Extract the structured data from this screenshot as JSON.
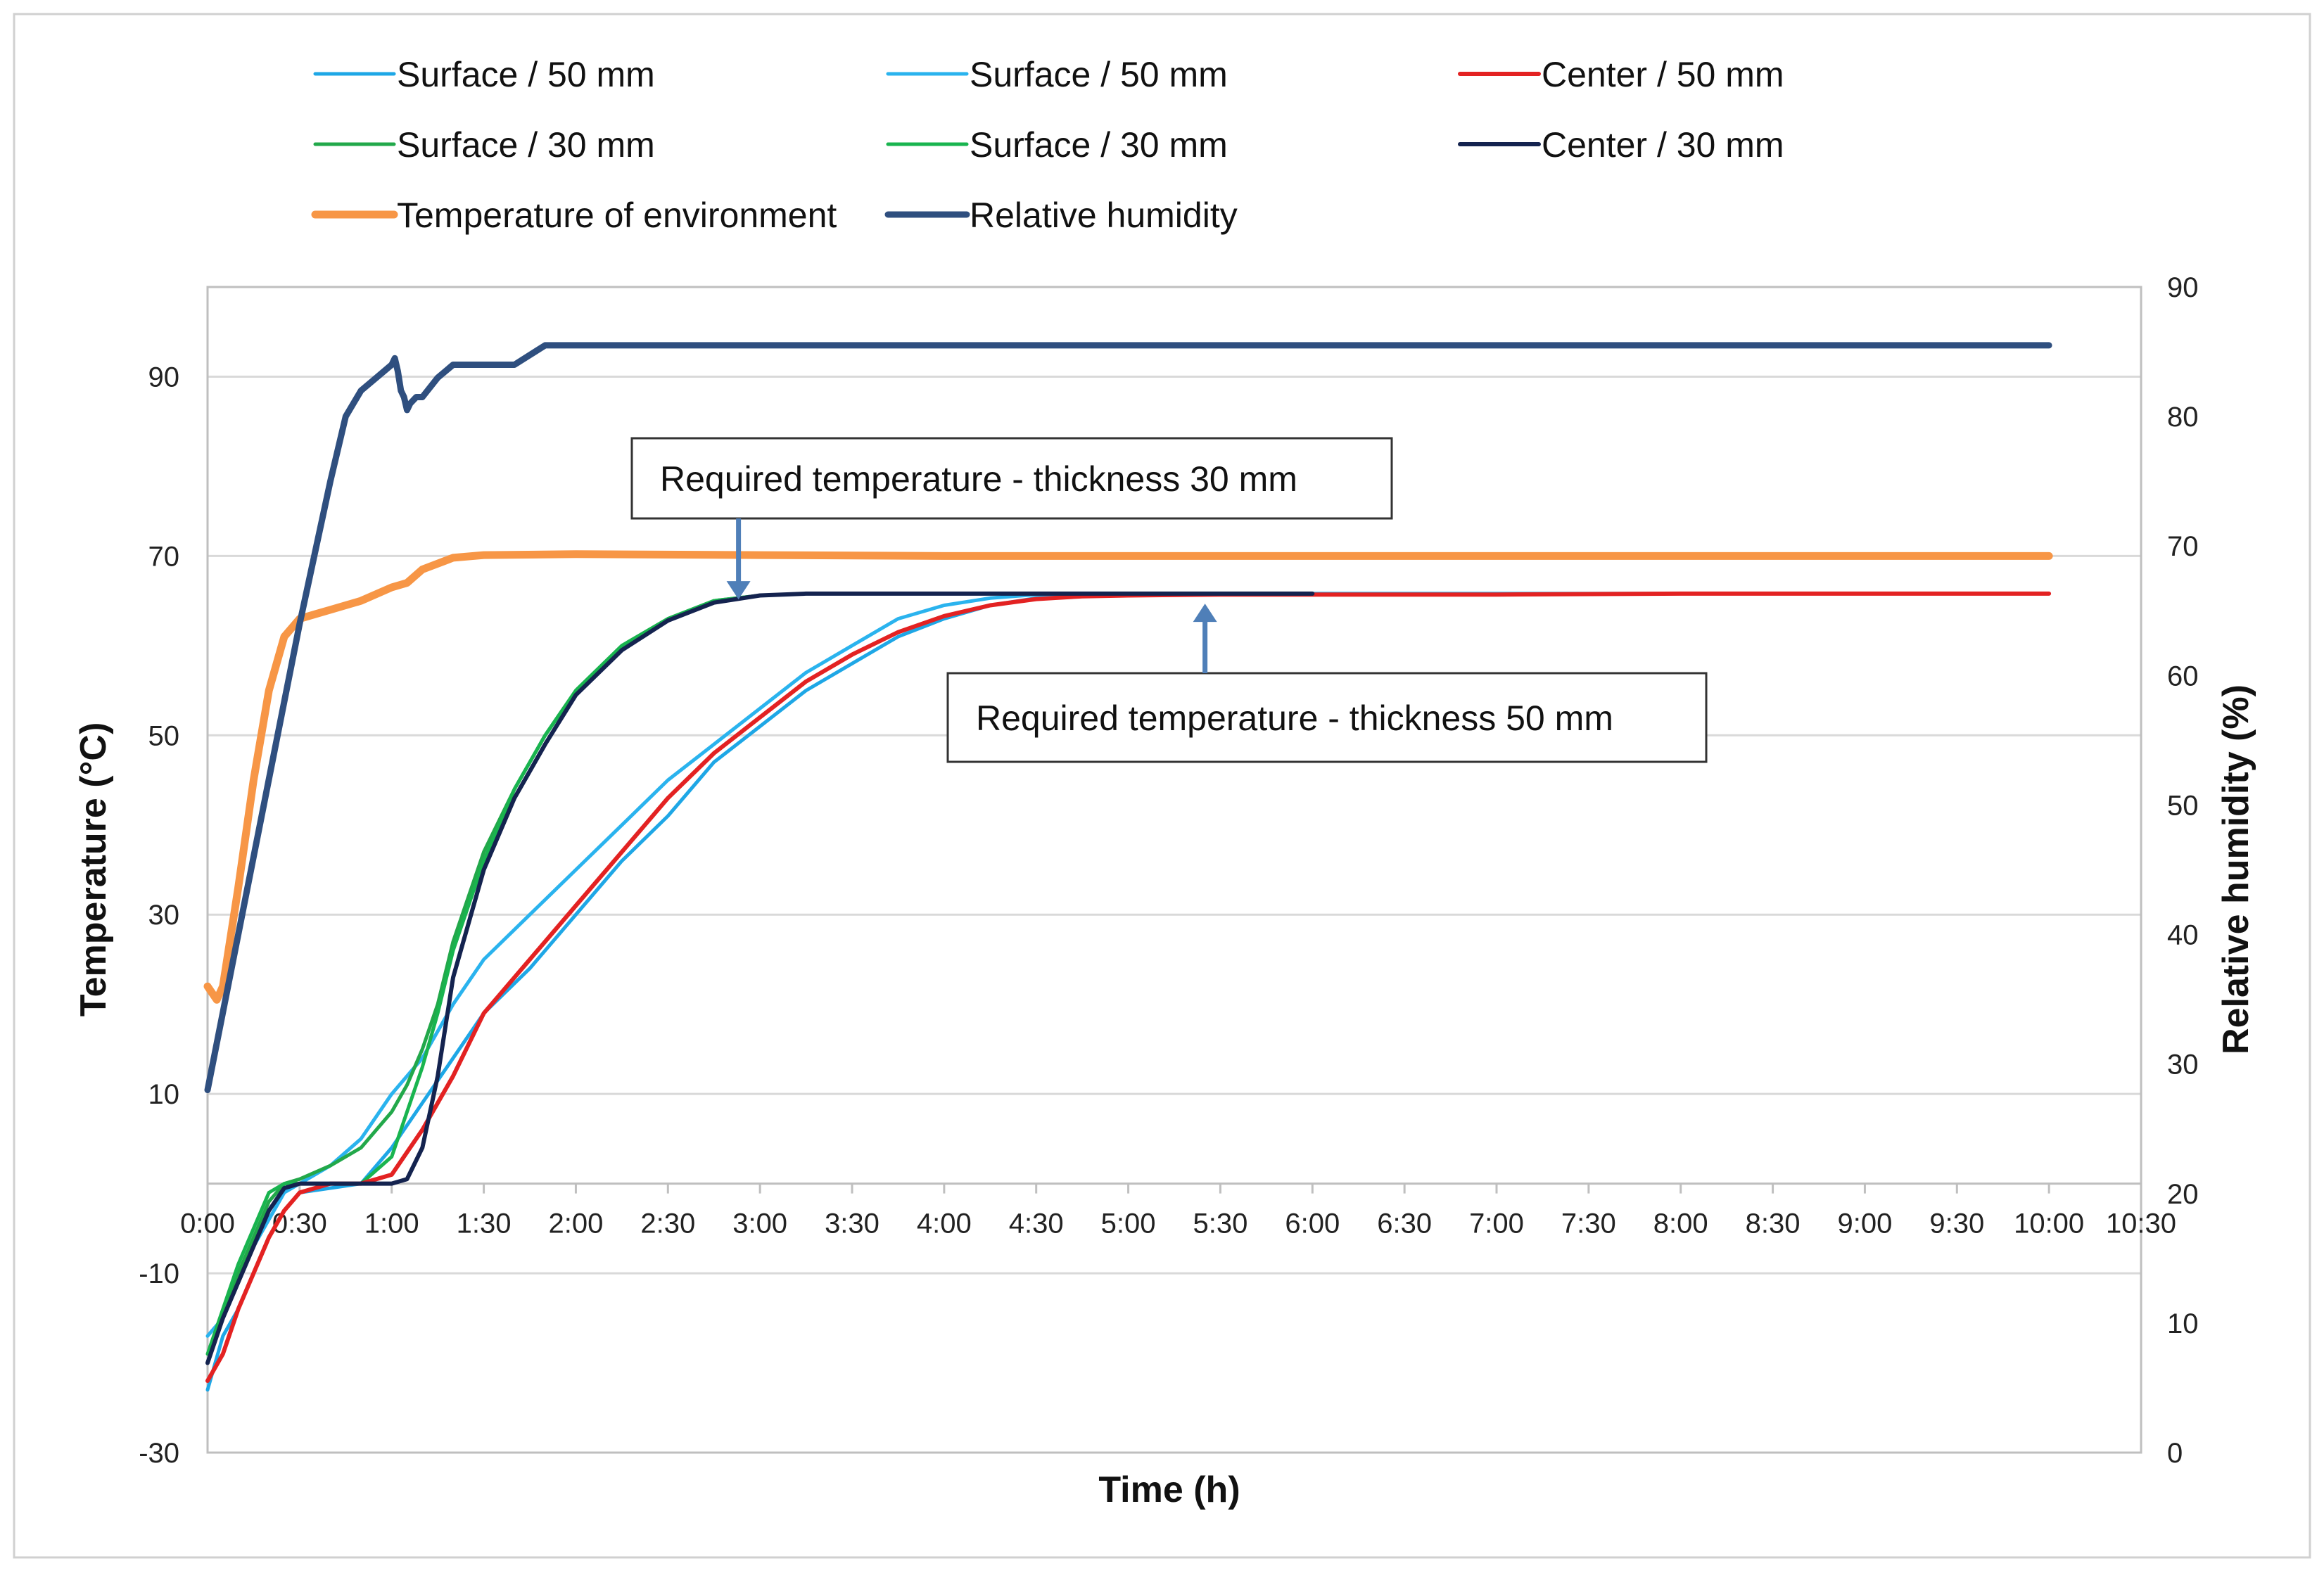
{
  "chart_data": {
    "type": "line",
    "xlabel": "Time (h)",
    "ylabel": "Temperature (°C)",
    "y2label": "Relative humidity (%)",
    "xlim": [
      0,
      630
    ],
    "ylim": [
      -30,
      100
    ],
    "y2lim": [
      0,
      90
    ],
    "x_ticks": [
      0,
      30,
      60,
      90,
      120,
      150,
      180,
      210,
      240,
      270,
      300,
      330,
      360,
      390,
      420,
      450,
      480,
      510,
      540,
      570,
      600,
      630
    ],
    "x_tick_labels": [
      "0:00",
      "0:30",
      "1:00",
      "1:30",
      "2:00",
      "2:30",
      "3:00",
      "3:30",
      "4:00",
      "4:30",
      "5:00",
      "5:30",
      "6:00",
      "6:30",
      "7:00",
      "7:30",
      "8:00",
      "8:30",
      "9:00",
      "9:30",
      "10:00",
      "10:30"
    ],
    "y_ticks": [
      -30,
      -10,
      10,
      30,
      50,
      70,
      90
    ],
    "y_tick_labels": [
      "-30",
      "-10",
      "10",
      "30",
      "50",
      "70",
      "90"
    ],
    "y2_ticks": [
      0,
      10,
      20,
      30,
      40,
      50,
      60,
      70,
      80,
      90
    ],
    "y2_tick_labels": [
      "0",
      "10",
      "20",
      "30",
      "40",
      "50",
      "60",
      "70",
      "80",
      "90"
    ],
    "gridlines": "horizontal",
    "legend_position": "top",
    "series": [
      {
        "name": "Surface / 50 mm",
        "color": "#1ea7e6",
        "axis": "left",
        "x": [
          0,
          5,
          10,
          15,
          20,
          25,
          30,
          40,
          50,
          60,
          70,
          80,
          90,
          105,
          120,
          135,
          150,
          165,
          180,
          195,
          210,
          225,
          240,
          255,
          270,
          285,
          300,
          330,
          360,
          420,
          480,
          540,
          600
        ],
        "y": [
          -23,
          -17,
          -14,
          -10,
          -6,
          -3,
          -1,
          -0.5,
          0,
          4,
          9,
          14,
          19,
          24,
          30,
          36,
          41,
          47,
          51,
          55,
          58,
          61,
          63,
          64.5,
          65.3,
          65.6,
          65.7,
          65.8,
          65.8,
          65.8,
          65.8,
          65.8,
          65.8
        ]
      },
      {
        "name": "Surface / 50 mm",
        "color": "#2ab3ee",
        "axis": "left",
        "x": [
          0,
          5,
          10,
          15,
          20,
          25,
          30,
          40,
          50,
          60,
          70,
          80,
          90,
          105,
          120,
          135,
          150,
          165,
          180,
          195,
          210,
          225,
          240,
          255,
          270,
          285,
          300,
          330,
          360,
          420,
          480,
          540,
          600
        ],
        "y": [
          -17,
          -15,
          -11,
          -7,
          -4,
          -1,
          0,
          2,
          5,
          10,
          14,
          20,
          25,
          30,
          35,
          40,
          45,
          49,
          53,
          57,
          60,
          63,
          64.5,
          65.3,
          65.7,
          65.8,
          65.8,
          65.8,
          65.8,
          65.8,
          65.8,
          65.8,
          65.8
        ]
      },
      {
        "name": "Center / 50 mm",
        "color": "#e32222",
        "axis": "left",
        "x": [
          0,
          5,
          10,
          15,
          20,
          25,
          30,
          40,
          50,
          60,
          70,
          80,
          90,
          105,
          120,
          135,
          150,
          165,
          180,
          195,
          210,
          225,
          240,
          255,
          270,
          285,
          300,
          330,
          360,
          420,
          480,
          540,
          600
        ],
        "y": [
          -22,
          -19,
          -14,
          -10,
          -6,
          -3,
          -1,
          0,
          0,
          1,
          6,
          12,
          19,
          25,
          31,
          37,
          43,
          48,
          52,
          56,
          59,
          61.5,
          63.3,
          64.5,
          65.2,
          65.5,
          65.6,
          65.7,
          65.7,
          65.7,
          65.8,
          65.8,
          65.8
        ]
      },
      {
        "name": "Surface / 30 mm",
        "color": "#22a84a",
        "axis": "left",
        "x": [
          0,
          5,
          10,
          15,
          20,
          25,
          30,
          40,
          50,
          60,
          65,
          70,
          75,
          80,
          90,
          100,
          110,
          120,
          135,
          150,
          165,
          180,
          195,
          210,
          240,
          270,
          300,
          360
        ],
        "y": [
          -20,
          -15,
          -10,
          -6,
          -2,
          0,
          0.5,
          2,
          4,
          8,
          11,
          15,
          20,
          27,
          37,
          44,
          50,
          55,
          60,
          63,
          65,
          65.6,
          65.8,
          65.8,
          65.8,
          65.8,
          65.8,
          65.8
        ]
      },
      {
        "name": "Surface / 30 mm",
        "color": "#19b44f",
        "axis": "left",
        "x": [
          0,
          5,
          10,
          15,
          20,
          25,
          30,
          40,
          50,
          60,
          65,
          70,
          75,
          80,
          90,
          100,
          110,
          120,
          135,
          150,
          165,
          180,
          195,
          210,
          240,
          270,
          300,
          360
        ],
        "y": [
          -19,
          -14,
          -9,
          -5,
          -1,
          0,
          0,
          0,
          0,
          3,
          8,
          13,
          19,
          26,
          36,
          44,
          50,
          55,
          60,
          63,
          65,
          65.6,
          65.8,
          65.8,
          65.8,
          65.8,
          65.8,
          65.8
        ]
      },
      {
        "name": "Center / 30 mm",
        "color": "#14234f",
        "axis": "left",
        "x": [
          0,
          5,
          10,
          15,
          20,
          25,
          30,
          40,
          50,
          60,
          65,
          70,
          75,
          80,
          90,
          100,
          110,
          120,
          135,
          150,
          165,
          180,
          195,
          210,
          240,
          270,
          300,
          360
        ],
        "y": [
          -20,
          -15,
          -11,
          -7,
          -3,
          -0.5,
          0,
          0,
          0,
          0,
          0.5,
          4,
          12,
          23,
          35,
          43,
          49,
          54.5,
          59.5,
          62.8,
          64.8,
          65.6,
          65.8,
          65.8,
          65.8,
          65.8,
          65.8,
          65.8
        ]
      },
      {
        "name": "Temperature of environment",
        "color": "#f79646",
        "axis": "left",
        "x": [
          0,
          3,
          5,
          10,
          15,
          20,
          25,
          30,
          35,
          40,
          50,
          60,
          65,
          70,
          80,
          90,
          120,
          180,
          240,
          300,
          360,
          420,
          480,
          540,
          600
        ],
        "y": [
          22,
          20.5,
          22,
          33,
          45,
          55,
          61,
          63,
          63.5,
          64,
          65,
          66.5,
          67,
          68.5,
          69.8,
          70.1,
          70.2,
          70.1,
          70.0,
          70.0,
          70.0,
          70.0,
          70.0,
          70.0,
          70.0
        ]
      },
      {
        "name": "Relative humidity",
        "color": "#2f4f7f",
        "axis": "right",
        "x": [
          0,
          10,
          20,
          30,
          40,
          45,
          50,
          55,
          60,
          61,
          62,
          63,
          64,
          65,
          66,
          68,
          70,
          75,
          80,
          90,
          100,
          110,
          120,
          150,
          180,
          240,
          300,
          360,
          420,
          480,
          540,
          600
        ],
        "y": [
          28,
          40,
          52,
          64,
          75,
          80,
          82,
          83,
          84,
          84.5,
          83.5,
          82,
          81.5,
          80.5,
          81,
          81.5,
          81.5,
          83,
          84,
          84,
          84,
          85.5,
          85.5,
          85.5,
          85.5,
          85.5,
          85.5,
          85.5,
          85.5,
          85.5,
          85.5,
          85.5
        ]
      }
    ],
    "annotations": [
      {
        "text": "Required temperature - thickness 30 mm",
        "target_x": 173,
        "target_y": 65
      },
      {
        "text": "Required temperature - thickness 50 mm",
        "target_x": 325,
        "target_y": 65
      }
    ]
  }
}
